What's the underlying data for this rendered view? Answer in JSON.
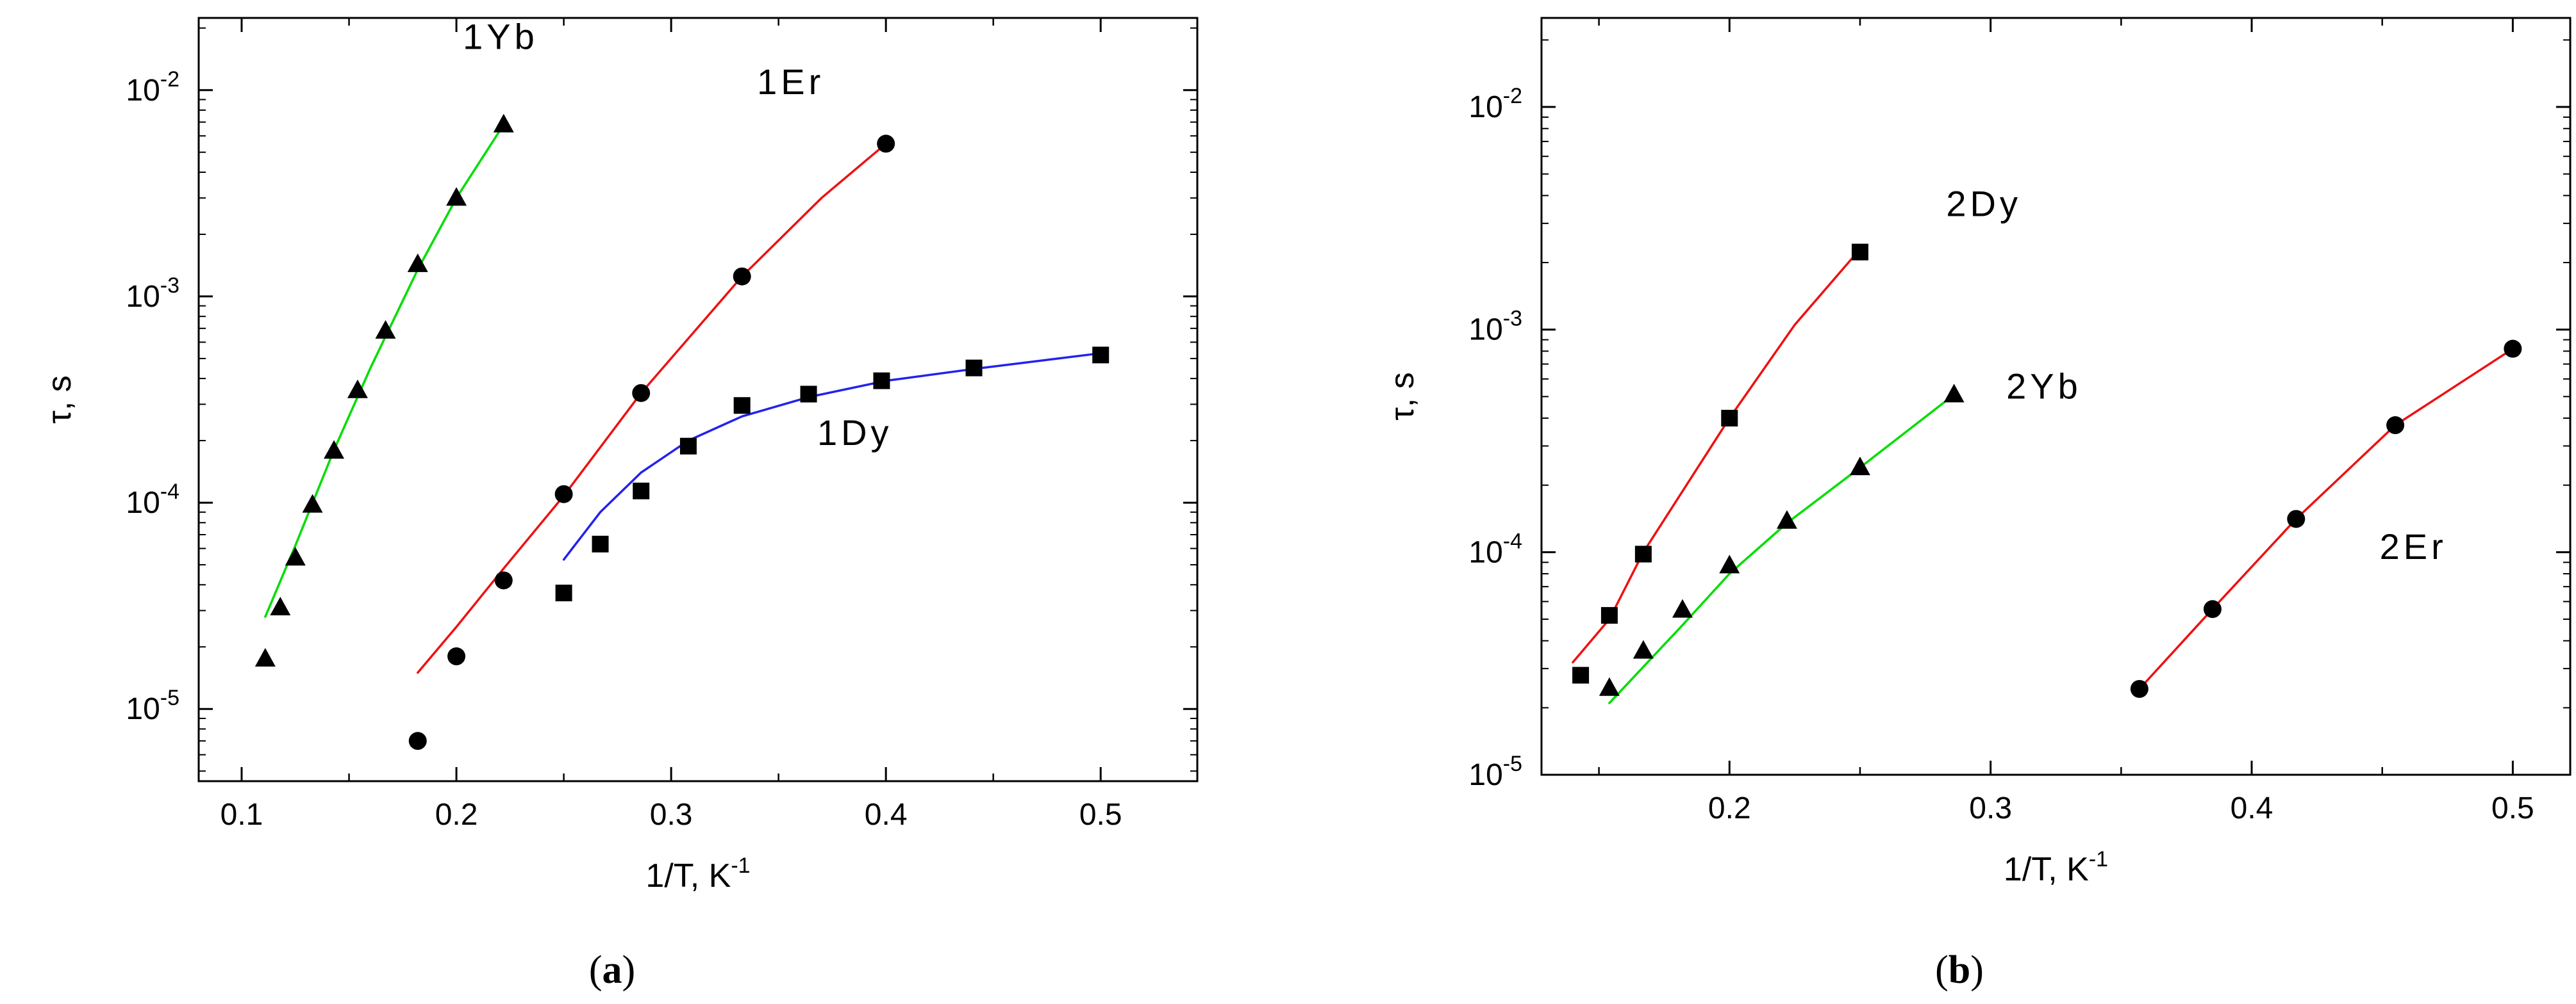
{
  "chart_data": [
    {
      "type": "scatter",
      "panel": "(a)",
      "panel_letter": "a",
      "xlabel": "1/T, K",
      "xlabel_exp": "-1",
      "ylabel": "τ, s",
      "xlim": [
        0.08,
        0.545
      ],
      "ylim_log10": [
        -5.35,
        -1.65
      ],
      "x_ticks": [
        0.1,
        0.2,
        0.3,
        0.4,
        0.5
      ],
      "x_tick_labels": [
        "0.1",
        "0.2",
        "0.3",
        "0.4",
        "0.5"
      ],
      "y_ticks_log10": [
        -5,
        -4,
        -3,
        -2
      ],
      "y_tick_labels": [
        {
          "base": "10",
          "exp": "-5"
        },
        {
          "base": "10",
          "exp": "-4"
        },
        {
          "base": "10",
          "exp": "-3"
        },
        {
          "base": "10",
          "exp": "-2"
        }
      ],
      "series": [
        {
          "name": "1Yb",
          "marker": "triangle",
          "fit_color": "#00dd00",
          "label_pos": [
            0.203,
            -1.8
          ],
          "x": [
            0.111,
            0.118,
            0.125,
            0.133,
            0.143,
            0.154,
            0.167,
            0.182,
            0.2,
            0.222
          ],
          "y": [
            1.75e-05,
            3.1e-05,
            5.4e-05,
            9.75e-05,
            0.000178,
            0.00035,
            0.00068,
            0.00143,
            0.003,
            0.0068
          ],
          "fit_x": [
            0.111,
            0.125,
            0.143,
            0.16,
            0.182,
            0.2,
            0.222
          ],
          "fit_y": [
            2.8e-05,
            6.2e-05,
            0.00018,
            0.00045,
            0.00135,
            0.003,
            0.0068
          ]
        },
        {
          "name": "1Er",
          "marker": "circle",
          "fit_color": "#ee1111",
          "label_pos": [
            0.34,
            -2.02
          ],
          "x": [
            0.182,
            0.2,
            0.222,
            0.25,
            0.286,
            0.333,
            0.4
          ],
          "y": [
            7e-06,
            1.8e-05,
            4.2e-05,
            0.00011,
            0.00034,
            0.00125,
            0.0055
          ],
          "fit_x": [
            0.182,
            0.2,
            0.222,
            0.25,
            0.286,
            0.333,
            0.37,
            0.4
          ],
          "fit_y": [
            1.5e-05,
            2.5e-05,
            4.8e-05,
            0.000108,
            0.00034,
            0.00125,
            0.003,
            0.0055
          ]
        },
        {
          "name": "1Dy",
          "marker": "square",
          "fit_color": "#2222ee",
          "label_pos": [
            0.368,
            -3.72
          ],
          "x": [
            0.25,
            0.267,
            0.286,
            0.308,
            0.333,
            0.364,
            0.398,
            0.441,
            0.5
          ],
          "y": [
            3.65e-05,
            6.3e-05,
            0.000114,
            0.000188,
            0.000296,
            0.000336,
            0.00039,
            0.00045,
            0.00052
          ],
          "fit_x": [
            0.25,
            0.267,
            0.286,
            0.308,
            0.333,
            0.364,
            0.4,
            0.441,
            0.5
          ],
          "fit_y": [
            5.3e-05,
            9e-05,
            0.00014,
            0.0002,
            0.000262,
            0.000325,
            0.00039,
            0.000445,
            0.00053
          ]
        }
      ]
    },
    {
      "type": "scatter",
      "panel": "(b)",
      "panel_letter": "b",
      "xlabel": "1/T, K",
      "xlabel_exp": "-1",
      "ylabel": "τ, s",
      "xlim": [
        0.128,
        0.522
      ],
      "ylim_log10": [
        -5.0,
        -1.6
      ],
      "x_ticks": [
        0.2,
        0.3,
        0.4,
        0.5
      ],
      "x_tick_labels": [
        "0.2",
        "0.3",
        "0.4",
        "0.5"
      ],
      "y_ticks_log10": [
        -5,
        -4,
        -3,
        -2
      ],
      "y_tick_labels": [
        {
          "base": "10",
          "exp": "-5"
        },
        {
          "base": "10",
          "exp": "-4"
        },
        {
          "base": "10",
          "exp": "-3"
        },
        {
          "base": "10",
          "exp": "-2"
        }
      ],
      "series": [
        {
          "name": "2Dy",
          "marker": "square",
          "fit_color": "#ee1111",
          "label_pos": [
            0.283,
            -2.49
          ],
          "x": [
            0.143,
            0.154,
            0.167,
            0.2,
            0.25
          ],
          "y": [
            2.8e-05,
            5.2e-05,
            9.8e-05,
            0.0004,
            0.00223
          ],
          "fit_x": [
            0.14,
            0.154,
            0.167,
            0.2,
            0.225,
            0.25
          ],
          "fit_y": [
            3.2e-05,
            5e-05,
            0.0001,
            0.0004,
            0.00105,
            0.0023
          ]
        },
        {
          "name": "2Yb",
          "marker": "triangle",
          "fit_color": "#00dd00",
          "label_pos": [
            0.306,
            -3.31
          ],
          "x": [
            0.154,
            0.167,
            0.182,
            0.2,
            0.222,
            0.25,
            0.286
          ],
          "y": [
            2.45e-05,
            3.6e-05,
            5.5e-05,
            8.7e-05,
            0.000138,
            0.00024,
            0.00051
          ],
          "fit_x": [
            0.154,
            0.182,
            0.2,
            0.222,
            0.25,
            0.286
          ],
          "fit_y": [
            2.1e-05,
            4.7e-05,
            8e-05,
            0.000135,
            0.00024,
            0.00051
          ]
        },
        {
          "name": "2Er",
          "marker": "circle",
          "fit_color": "#ee1111",
          "label_pos": [
            0.449,
            -4.03
          ],
          "x": [
            0.357,
            0.385,
            0.417,
            0.455,
            0.5
          ],
          "y": [
            2.43e-05,
            5.55e-05,
            0.000141,
            0.000372,
            0.00082
          ],
          "fit_x": [
            0.357,
            0.385,
            0.417,
            0.455,
            0.5
          ],
          "fit_y": [
            2.43e-05,
            5.55e-05,
            0.000141,
            0.000372,
            0.00082
          ]
        }
      ]
    }
  ]
}
